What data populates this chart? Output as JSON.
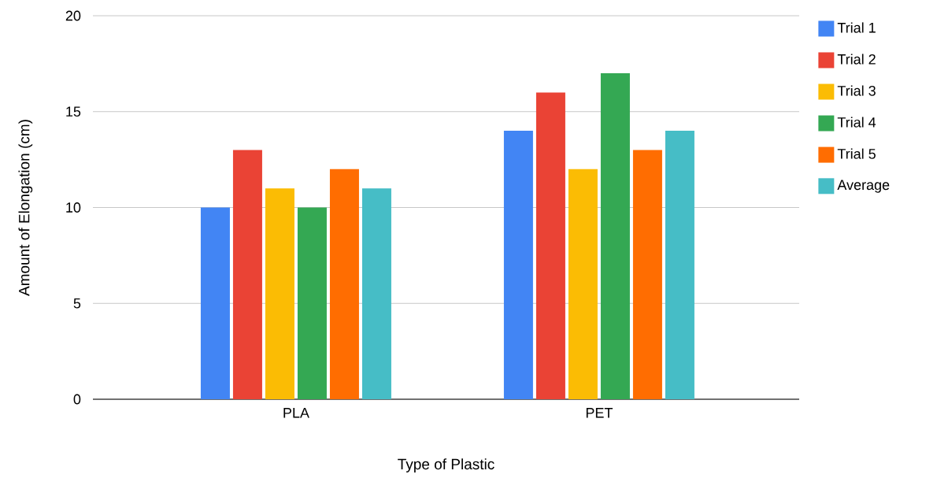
{
  "chart_data": {
    "type": "bar",
    "xlabel": "Type of Plastic",
    "ylabel": "Amount of Elongation (cm)",
    "categories": [
      "PLA",
      "PET"
    ],
    "series": [
      {
        "name": "Trial 1",
        "color": "#4285f4",
        "values": [
          10,
          14
        ]
      },
      {
        "name": "Trial 2",
        "color": "#ea4335",
        "values": [
          13,
          16
        ]
      },
      {
        "name": "Trial 3",
        "color": "#fbbc04",
        "values": [
          11,
          12
        ]
      },
      {
        "name": "Trial 4",
        "color": "#34a853",
        "values": [
          10,
          17
        ]
      },
      {
        "name": "Trial 5",
        "color": "#ff6d01",
        "values": [
          12,
          13
        ]
      },
      {
        "name": "Average",
        "color": "#46bdc6",
        "values": [
          11,
          14
        ]
      }
    ],
    "ylim": [
      0,
      20
    ],
    "yticks": [
      0,
      5,
      10,
      15,
      20
    ],
    "grid": "y",
    "legend": "top right"
  }
}
